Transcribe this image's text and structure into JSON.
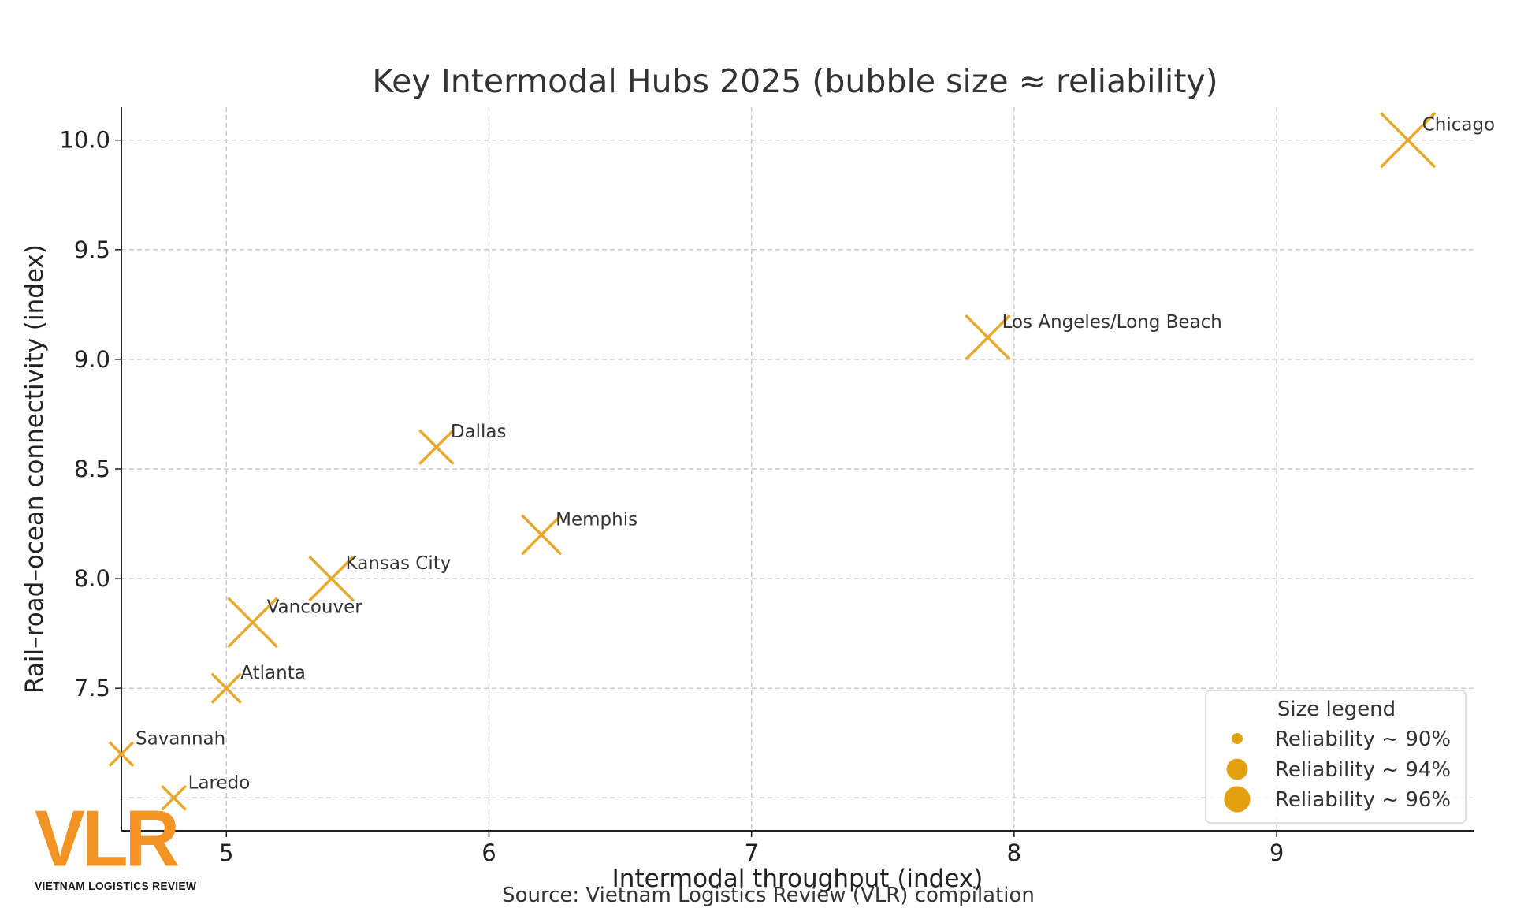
{
  "chart_data": {
    "type": "scatter",
    "title": "Key Intermodal Hubs 2025 (bubble size ≈ reliability)",
    "xlabel": "Intermodal throughput (index)",
    "ylabel": "Rail–road–ocean connectivity (index)",
    "xlim": [
      4.6,
      9.75
    ],
    "ylim": [
      6.85,
      10.15
    ],
    "xticks": [
      5,
      6,
      7,
      8,
      9
    ],
    "yticks": [
      7.5,
      8.0,
      8.5,
      9.0,
      9.5,
      10.0
    ],
    "ytick_labels": [
      "7.5",
      "8.0",
      "8.5",
      "9.0",
      "9.5",
      "10.0"
    ],
    "grid": true,
    "marker": "x",
    "marker_color": "#e8a92b",
    "points": [
      {
        "label": "Chicago",
        "x": 9.5,
        "y": 10.0,
        "reliability": 97
      },
      {
        "label": "Los Angeles/Long Beach",
        "x": 7.9,
        "y": 9.1,
        "reliability": 95
      },
      {
        "label": "Dallas",
        "x": 5.8,
        "y": 8.6,
        "reliability": 93
      },
      {
        "label": "Memphis",
        "x": 6.2,
        "y": 8.2,
        "reliability": 94
      },
      {
        "label": "Kansas City",
        "x": 5.4,
        "y": 8.0,
        "reliability": 95
      },
      {
        "label": "Vancouver",
        "x": 5.1,
        "y": 7.8,
        "reliability": 96
      },
      {
        "label": "Atlanta",
        "x": 5.0,
        "y": 7.5,
        "reliability": 92
      },
      {
        "label": "Savannah",
        "x": 4.6,
        "y": 7.2,
        "reliability": 91
      },
      {
        "label": "Laredo",
        "x": 4.8,
        "y": 7.0,
        "reliability": 91
      }
    ],
    "legend": {
      "title": "Size legend",
      "position": "lower-right",
      "color": "#e3a10f",
      "entries": [
        {
          "label": "Reliability ~ 90%",
          "reliability": 90
        },
        {
          "label": "Reliability ~ 94%",
          "reliability": 94
        },
        {
          "label": "Reliability ~ 96%",
          "reliability": 96
        }
      ]
    },
    "source": "Source: Vietnam Logistics Review (VLR) compilation"
  },
  "logo": {
    "mark": "VLR",
    "name": "VIETNAM LOGISTICS REVIEW",
    "color": "#f39323"
  }
}
